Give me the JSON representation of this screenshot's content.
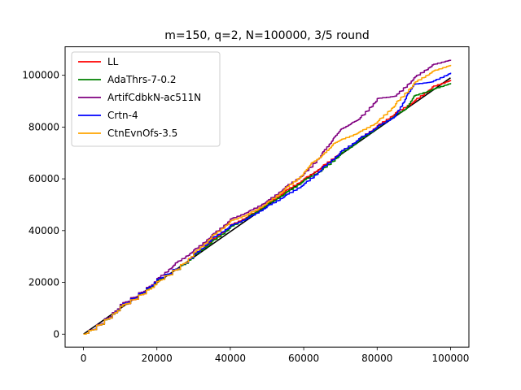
{
  "chart_data": {
    "type": "line",
    "title": "m=150, q=2, N=100000, 3/5 round",
    "xlabel": "",
    "ylabel": "",
    "xlim": [
      -5000,
      105000
    ],
    "ylim": [
      -5000,
      111000
    ],
    "xticks": [
      0,
      20000,
      40000,
      60000,
      80000,
      100000
    ],
    "yticks": [
      0,
      20000,
      40000,
      60000,
      80000,
      100000
    ],
    "grid": false,
    "legend_position": "top-left",
    "reference_line": {
      "color": "#000000",
      "x": [
        0,
        100000
      ],
      "y": [
        0,
        99000
      ]
    },
    "series": [
      {
        "name": "LL",
        "color": "#ff0000",
        "x": [
          0,
          10000,
          20000,
          30000,
          35000,
          40000,
          45000,
          50000,
          55000,
          60000,
          65000,
          70000,
          75000,
          80000,
          85000,
          90000,
          95000,
          100000
        ],
        "y": [
          0,
          10600,
          20500,
          31000,
          36500,
          42200,
          45800,
          50500,
          55500,
          60000,
          64800,
          70500,
          75500,
          80500,
          85500,
          90000,
          95500,
          98200
        ]
      },
      {
        "name": "AdaThrs-7-0.2",
        "color": "#008000",
        "x": [
          0,
          10000,
          20000,
          30000,
          35000,
          40000,
          45000,
          50000,
          55000,
          60000,
          65000,
          70000,
          75000,
          80000,
          85000,
          88000,
          90000,
          95000,
          100000
        ],
        "y": [
          0,
          10700,
          20800,
          30600,
          36000,
          41500,
          45600,
          50200,
          54700,
          59500,
          63600,
          69800,
          75000,
          80000,
          84800,
          87200,
          92000,
          94500,
          97000
        ]
      },
      {
        "name": "ArtifCdbkN-ac511N",
        "color": "#800080",
        "x": [
          0,
          10000,
          20000,
          25000,
          30000,
          35000,
          40000,
          45000,
          50000,
          55000,
          60000,
          65000,
          68000,
          70000,
          73000,
          75000,
          80000,
          85000,
          90000,
          95000,
          100000
        ],
        "y": [
          0,
          11500,
          21500,
          27500,
          32500,
          38500,
          44500,
          47500,
          51500,
          57000,
          62000,
          70000,
          75500,
          79000,
          81500,
          83000,
          91000,
          92000,
          99000,
          104000,
          106000
        ]
      },
      {
        "name": "Crtn-4",
        "color": "#0000ff",
        "x": [
          0,
          10000,
          20000,
          30000,
          35000,
          40000,
          45000,
          50000,
          55000,
          60000,
          65000,
          70000,
          75000,
          80000,
          85000,
          88000,
          90000,
          95000,
          100000
        ],
        "y": [
          0,
          11000,
          21200,
          30800,
          37200,
          42000,
          45200,
          49500,
          53700,
          58000,
          64200,
          70500,
          75500,
          80200,
          84500,
          92000,
          96500,
          97500,
          101000
        ]
      },
      {
        "name": "CtnEvnOfs-3.5",
        "color": "#ffa500",
        "x": [
          0,
          10000,
          20000,
          30000,
          35000,
          40000,
          45000,
          50000,
          55000,
          60000,
          62000,
          65000,
          68000,
          70000,
          75000,
          80000,
          85000,
          90000,
          95000,
          100000
        ],
        "y": [
          0,
          10800,
          20300,
          31500,
          38000,
          43800,
          46600,
          50800,
          56500,
          62300,
          66000,
          69000,
          73500,
          75000,
          78000,
          82000,
          89000,
          97000,
          101500,
          104000
        ]
      }
    ]
  }
}
